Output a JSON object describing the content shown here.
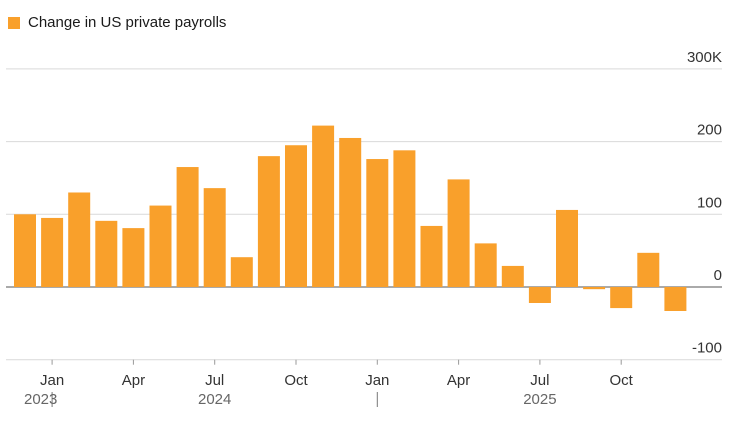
{
  "legend": {
    "label": "Change in US private payrolls",
    "color": "#f9a02b"
  },
  "chart_data": {
    "type": "bar",
    "categories": [
      "2023-12",
      "2024-01",
      "2024-02",
      "2024-03",
      "2024-04",
      "2024-05",
      "2024-06",
      "2024-07",
      "2024-08",
      "2024-09",
      "2024-10",
      "2024-11",
      "2024-12",
      "2025-01",
      "2025-02",
      "2025-03",
      "2025-04",
      "2025-05",
      "2025-06",
      "2025-07",
      "2025-08",
      "2025-09",
      "2025-10",
      "2025-11",
      "2025-12"
    ],
    "series": [
      {
        "name": "Change in US private payrolls",
        "values": [
          100,
          95,
          130,
          91,
          81,
          112,
          165,
          136,
          41,
          180,
          195,
          222,
          205,
          176,
          188,
          84,
          148,
          60,
          29,
          -22,
          106,
          -3,
          -29,
          47,
          -33
        ]
      }
    ],
    "ylim": [
      -100,
      300
    ],
    "yticks": [
      -100,
      0,
      100,
      200,
      300
    ],
    "ytick_labels": [
      "-100",
      "0",
      "100",
      "200",
      "300K"
    ],
    "xtick_labels": [
      {
        "category": "2024-01",
        "label": "Jan"
      },
      {
        "category": "2024-04",
        "label": "Apr"
      },
      {
        "category": "2024-07",
        "label": "Jul"
      },
      {
        "category": "2024-10",
        "label": "Oct"
      },
      {
        "category": "2025-01",
        "label": "Jan"
      },
      {
        "category": "2025-04",
        "label": "Apr"
      },
      {
        "category": "2025-07",
        "label": "Jul"
      },
      {
        "category": "2025-10",
        "label": "Oct"
      }
    ],
    "year_labels": [
      {
        "label": "2023",
        "category": "2023-12"
      },
      {
        "label": "2024",
        "category": "2024-07"
      },
      {
        "label": "2025",
        "category": "2025-07"
      }
    ],
    "year_separators": [
      "2024-01",
      "2025-01"
    ],
    "grid": true,
    "bar_color": "#f9a02b"
  }
}
